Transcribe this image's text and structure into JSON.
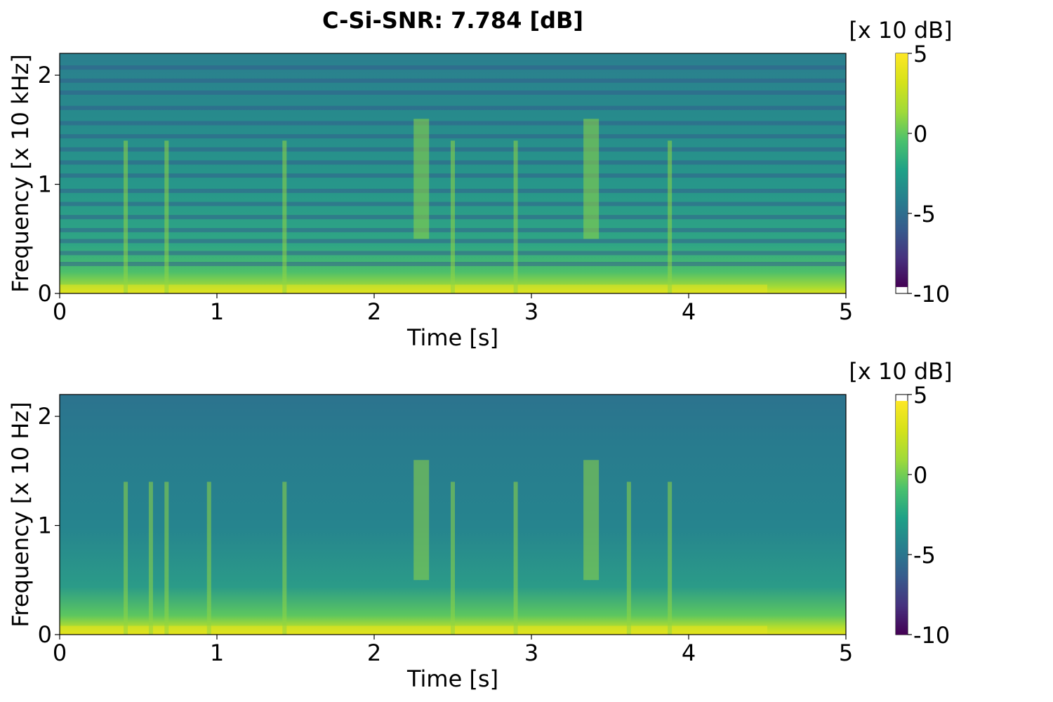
{
  "chart_data": [
    {
      "type": "heatmap",
      "title": "C-Si-SNR: 7.784 [dB]",
      "xlabel": "Time [s]",
      "ylabel": "Frequency [x 10 kHz]",
      "xlim": [
        0,
        5
      ],
      "ylim": [
        0,
        2.2
      ],
      "x_ticks": [
        "0",
        "1",
        "2",
        "3",
        "4",
        "5"
      ],
      "y_ticks": [
        "0",
        "1",
        "2"
      ],
      "colorbar": {
        "unit": "[x 10 dB]",
        "range": [
          -10,
          5
        ],
        "ticks": [
          "5",
          "0",
          "-5",
          "-10"
        ],
        "colormap": "viridis",
        "data_range": [
          -9.6,
          5
        ]
      },
      "features": {
        "harmonic_band_frequencies": [
          0.27,
          0.37,
          0.48,
          0.58,
          0.7,
          0.82,
          0.94,
          1.08,
          1.2,
          1.32,
          1.44,
          1.56,
          1.7,
          1.84,
          1.95,
          2.07
        ],
        "transient_times": [
          0.42,
          0.68,
          1.43,
          2.5,
          2.9,
          3.88
        ],
        "broadband_burst_times": [
          2.3,
          3.38
        ]
      }
    },
    {
      "type": "heatmap",
      "title": "",
      "xlabel": "Time [s]",
      "ylabel": "Frequency [x 10 Hz]",
      "xlim": [
        0,
        5
      ],
      "ylim": [
        0,
        2.2
      ],
      "x_ticks": [
        "0",
        "1",
        "2",
        "3",
        "4",
        "5"
      ],
      "y_ticks": [
        "0",
        "1",
        "2"
      ],
      "colorbar": {
        "unit": "[x 10 dB]",
        "range": [
          -10,
          5
        ],
        "ticks": [
          "5",
          "0",
          "-5",
          "-10"
        ],
        "colormap": "viridis",
        "data_range": [
          -10,
          4.6
        ]
      },
      "features": {
        "transient_times": [
          0.42,
          0.58,
          0.68,
          0.95,
          1.43,
          2.5,
          2.9,
          3.62,
          3.88
        ],
        "broadband_burst_times": [
          2.3,
          3.38
        ]
      }
    }
  ],
  "colors": {
    "viridis_low": "#440154",
    "viridis_mid": "#21918c",
    "viridis_high": "#fde725"
  }
}
